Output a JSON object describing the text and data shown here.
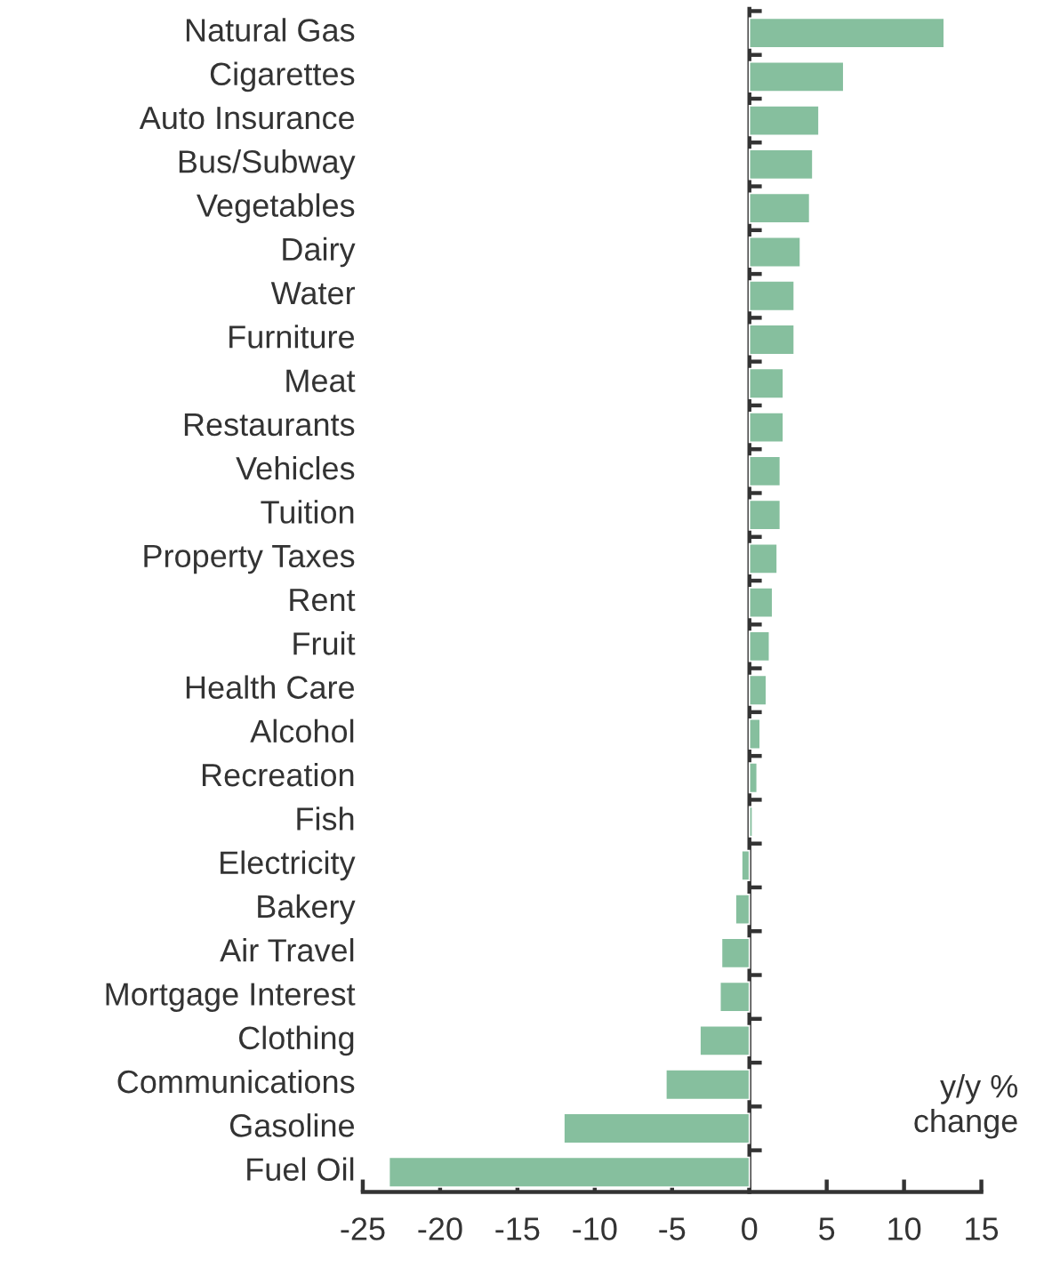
{
  "chart_data": {
    "type": "bar",
    "orientation": "horizontal",
    "categories": [
      "Natural Gas",
      "Cigarettes",
      "Auto Insurance",
      "Bus/Subway",
      "Vegetables",
      "Dairy",
      "Water",
      "Furniture",
      "Meat",
      "Restaurants",
      "Vehicles",
      "Tuition",
      "Property Taxes",
      "Rent",
      "Fruit",
      "Health Care",
      "Alcohol",
      "Recreation",
      "Fish",
      "Electricity",
      "Bakery",
      "Air Travel",
      "Mortgage Interest",
      "Clothing",
      "Communications",
      "Gasoline",
      "Fuel Oil"
    ],
    "series": [
      {
        "color": "#86bf9e",
        "values": [
          12.6,
          6.1,
          4.5,
          4.1,
          3.9,
          3.3,
          2.9,
          2.9,
          2.2,
          2.2,
          2.0,
          2.0,
          1.8,
          1.5,
          1.3,
          1.1,
          0.7,
          0.5,
          0.2,
          -0.5,
          -0.9,
          -1.8,
          -1.9,
          -3.2,
          -5.4,
          -12.0,
          -23.3
        ]
      }
    ],
    "xlim": [
      -25,
      15
    ],
    "xticks": [
      -25,
      -20,
      -15,
      -10,
      -5,
      0,
      5,
      10,
      15
    ],
    "annotations": [
      "y/y %\nchange"
    ],
    "legend": false
  }
}
